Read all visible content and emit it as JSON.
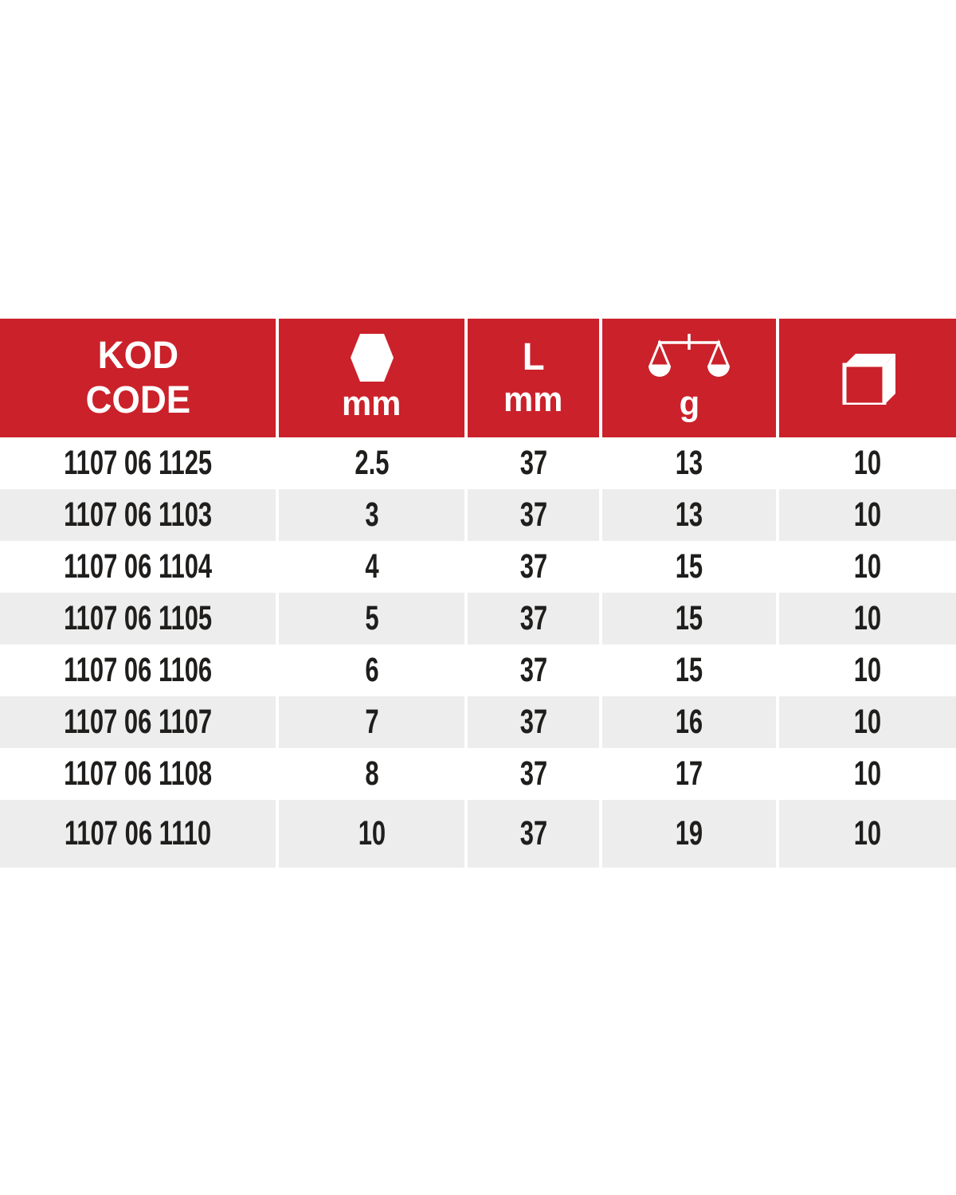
{
  "colors": {
    "header_bg": "#CB212A",
    "header_text": "#FFFFFF",
    "row_alt_bg": "#EDEDED",
    "text": "#1F1E1D",
    "divider": "#FFFFFF"
  },
  "table": {
    "header": {
      "code": {
        "line1": "KOD",
        "line2": "CODE"
      },
      "hex": {
        "icon": "hex-socket-icon",
        "unit": "mm"
      },
      "length": {
        "line1": "L",
        "line2": "mm"
      },
      "weight": {
        "icon": "weight-scale-icon",
        "unit": "g"
      },
      "package": {
        "icon": "package-box-icon"
      }
    },
    "rows": [
      {
        "code": "1107 06 1125",
        "hex_mm": "2.5",
        "length_mm": "37",
        "weight_g": "13",
        "pack_qty": "10"
      },
      {
        "code": "1107 06 1103",
        "hex_mm": "3",
        "length_mm": "37",
        "weight_g": "13",
        "pack_qty": "10"
      },
      {
        "code": "1107 06 1104",
        "hex_mm": "4",
        "length_mm": "37",
        "weight_g": "15",
        "pack_qty": "10"
      },
      {
        "code": "1107 06 1105",
        "hex_mm": "5",
        "length_mm": "37",
        "weight_g": "15",
        "pack_qty": "10"
      },
      {
        "code": "1107 06 1106",
        "hex_mm": "6",
        "length_mm": "37",
        "weight_g": "15",
        "pack_qty": "10"
      },
      {
        "code": "1107 06 1107",
        "hex_mm": "7",
        "length_mm": "37",
        "weight_g": "16",
        "pack_qty": "10"
      },
      {
        "code": "1107 06 1108",
        "hex_mm": "8",
        "length_mm": "37",
        "weight_g": "17",
        "pack_qty": "10"
      },
      {
        "code": "1107 06 1110",
        "hex_mm": "10",
        "length_mm": "37",
        "weight_g": "19",
        "pack_qty": "10"
      }
    ]
  }
}
